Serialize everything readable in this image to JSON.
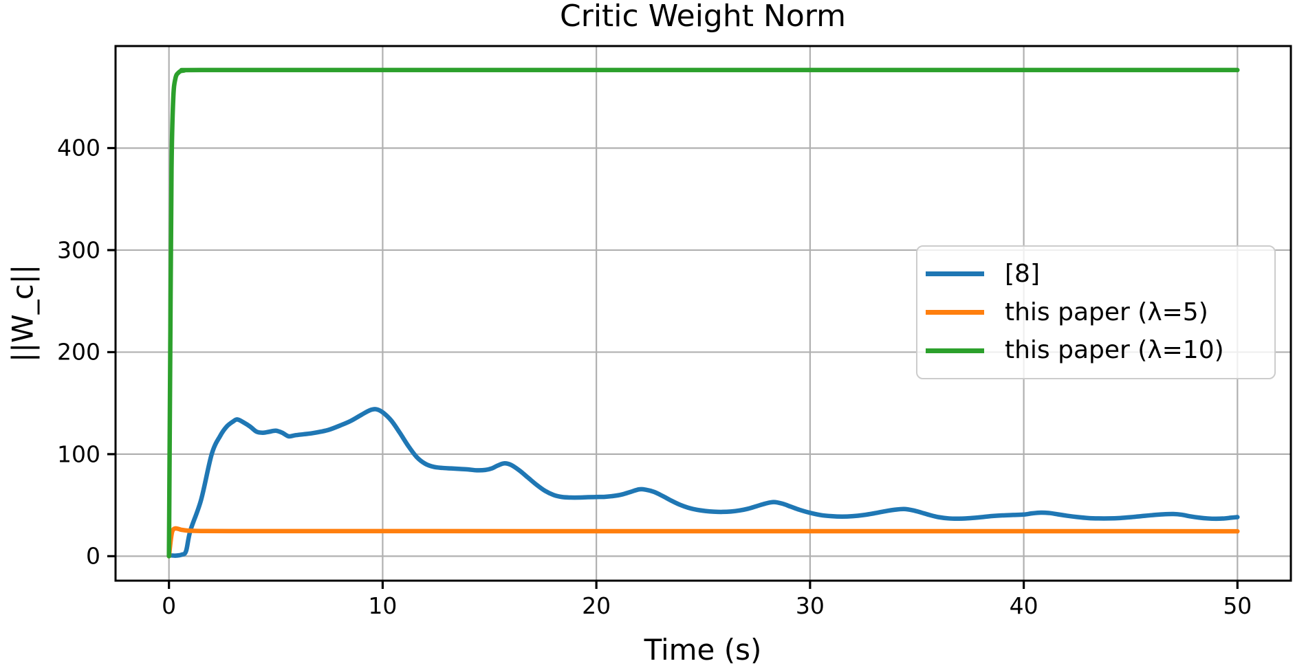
{
  "chart_data": {
    "type": "line",
    "title": "Critic Weight Norm",
    "xlabel": "Time (s)",
    "ylabel": "||W_c||",
    "xlim": [
      -2.5,
      52.5
    ],
    "ylim": [
      -24,
      500
    ],
    "x_ticks": [
      0,
      10,
      20,
      30,
      40,
      50
    ],
    "y_ticks": [
      0,
      100,
      200,
      300,
      400
    ],
    "grid": true,
    "grid_color": "#b0b0b0",
    "axis_color": "#000000",
    "legend_position": "center-right-inside",
    "series": [
      {
        "name": "[8]",
        "color": "#1f77b4",
        "points": [
          [
            0,
            1
          ],
          [
            0.3,
            0.5
          ],
          [
            0.6,
            1.5
          ],
          [
            0.8,
            5
          ],
          [
            1,
            25
          ],
          [
            1.5,
            55
          ],
          [
            2,
            100
          ],
          [
            2.4,
            118
          ],
          [
            2.7,
            127
          ],
          [
            3,
            132
          ],
          [
            3.2,
            134
          ],
          [
            3.5,
            131
          ],
          [
            3.8,
            127
          ],
          [
            4.1,
            122
          ],
          [
            4.4,
            121
          ],
          [
            4.7,
            122
          ],
          [
            5,
            123
          ],
          [
            5.3,
            121
          ],
          [
            5.6,
            117.5
          ],
          [
            5.9,
            118.5
          ],
          [
            6.3,
            119.5
          ],
          [
            6.7,
            120.5
          ],
          [
            7.1,
            122
          ],
          [
            7.5,
            124
          ],
          [
            8,
            128
          ],
          [
            8.5,
            132.5
          ],
          [
            9,
            138.5
          ],
          [
            9.4,
            143
          ],
          [
            9.7,
            144
          ],
          [
            10,
            141
          ],
          [
            10.4,
            133
          ],
          [
            10.8,
            121
          ],
          [
            11.2,
            108
          ],
          [
            11.6,
            97
          ],
          [
            12,
            90.5
          ],
          [
            12.4,
            87.5
          ],
          [
            12.8,
            86.5
          ],
          [
            13.2,
            86
          ],
          [
            13.6,
            85.5
          ],
          [
            14,
            85
          ],
          [
            14.4,
            84.2
          ],
          [
            14.8,
            84.5
          ],
          [
            15.1,
            86
          ],
          [
            15.4,
            89
          ],
          [
            15.7,
            91
          ],
          [
            16,
            89.5
          ],
          [
            16.4,
            84
          ],
          [
            16.8,
            77
          ],
          [
            17.2,
            70
          ],
          [
            17.6,
            64
          ],
          [
            18,
            60
          ],
          [
            18.4,
            58
          ],
          [
            18.8,
            57.5
          ],
          [
            19.2,
            57.5
          ],
          [
            19.6,
            57.8
          ],
          [
            20,
            58
          ],
          [
            20.4,
            58.2
          ],
          [
            20.8,
            59
          ],
          [
            21.2,
            60.5
          ],
          [
            21.6,
            63
          ],
          [
            22,
            65.5
          ],
          [
            22.3,
            65.2
          ],
          [
            22.7,
            63
          ],
          [
            23.1,
            59
          ],
          [
            23.5,
            54.5
          ],
          [
            23.9,
            50.5
          ],
          [
            24.3,
            47.5
          ],
          [
            24.7,
            45.5
          ],
          [
            25.1,
            44.3
          ],
          [
            25.5,
            43.6
          ],
          [
            25.9,
            43.4
          ],
          [
            26.3,
            43.8
          ],
          [
            26.7,
            44.8
          ],
          [
            27.1,
            46.5
          ],
          [
            27.5,
            49
          ],
          [
            27.9,
            51.5
          ],
          [
            28.3,
            53
          ],
          [
            28.7,
            51.5
          ],
          [
            29.1,
            48.5
          ],
          [
            29.5,
            45.5
          ],
          [
            30,
            42.5
          ],
          [
            30.5,
            40.3
          ],
          [
            31,
            39.2
          ],
          [
            31.5,
            38.8
          ],
          [
            32,
            39.2
          ],
          [
            32.5,
            40.3
          ],
          [
            33,
            42
          ],
          [
            33.5,
            44
          ],
          [
            34,
            45.6
          ],
          [
            34.4,
            46.2
          ],
          [
            34.8,
            45
          ],
          [
            35.2,
            42.8
          ],
          [
            35.6,
            40.3
          ],
          [
            36,
            38.3
          ],
          [
            36.5,
            37
          ],
          [
            37,
            36.8
          ],
          [
            37.5,
            37.3
          ],
          [
            38,
            38.2
          ],
          [
            38.5,
            39.3
          ],
          [
            39,
            40
          ],
          [
            39.5,
            40.4
          ],
          [
            40,
            40.8
          ],
          [
            40.4,
            42
          ],
          [
            40.8,
            42.7
          ],
          [
            41.2,
            42.3
          ],
          [
            41.6,
            41
          ],
          [
            42,
            39.7
          ],
          [
            42.5,
            38.4
          ],
          [
            43,
            37.4
          ],
          [
            43.5,
            37
          ],
          [
            44,
            37
          ],
          [
            44.5,
            37.4
          ],
          [
            45,
            38.2
          ],
          [
            45.5,
            39.2
          ],
          [
            46,
            40.2
          ],
          [
            46.5,
            41
          ],
          [
            47,
            41.3
          ],
          [
            47.4,
            40.6
          ],
          [
            47.8,
            39
          ],
          [
            48.2,
            37.8
          ],
          [
            48.6,
            37
          ],
          [
            49,
            36.7
          ],
          [
            49.4,
            37
          ],
          [
            49.7,
            37.7
          ],
          [
            50,
            38.3
          ]
        ]
      },
      {
        "name": "this paper (λ=5)",
        "color": "#ff7f0e",
        "points": [
          [
            0,
            0
          ],
          [
            0.08,
            15
          ],
          [
            0.15,
            24
          ],
          [
            0.25,
            27
          ],
          [
            0.4,
            27
          ],
          [
            0.6,
            25.8
          ],
          [
            0.9,
            25
          ],
          [
            1.5,
            24.7
          ],
          [
            3,
            24.6
          ],
          [
            10,
            24.6
          ],
          [
            20,
            24.5
          ],
          [
            30,
            24.5
          ],
          [
            40,
            24.5
          ],
          [
            50,
            24.4
          ]
        ]
      },
      {
        "name": "this paper (λ=10)",
        "color": "#2ca02c",
        "points": [
          [
            0,
            0
          ],
          [
            0.06,
            200
          ],
          [
            0.12,
            380
          ],
          [
            0.2,
            448
          ],
          [
            0.3,
            468
          ],
          [
            0.45,
            474
          ],
          [
            0.7,
            476
          ],
          [
            1.5,
            476.5
          ],
          [
            10,
            476.5
          ],
          [
            25,
            476.5
          ],
          [
            40,
            476.5
          ],
          [
            50,
            476.5
          ]
        ]
      }
    ]
  }
}
